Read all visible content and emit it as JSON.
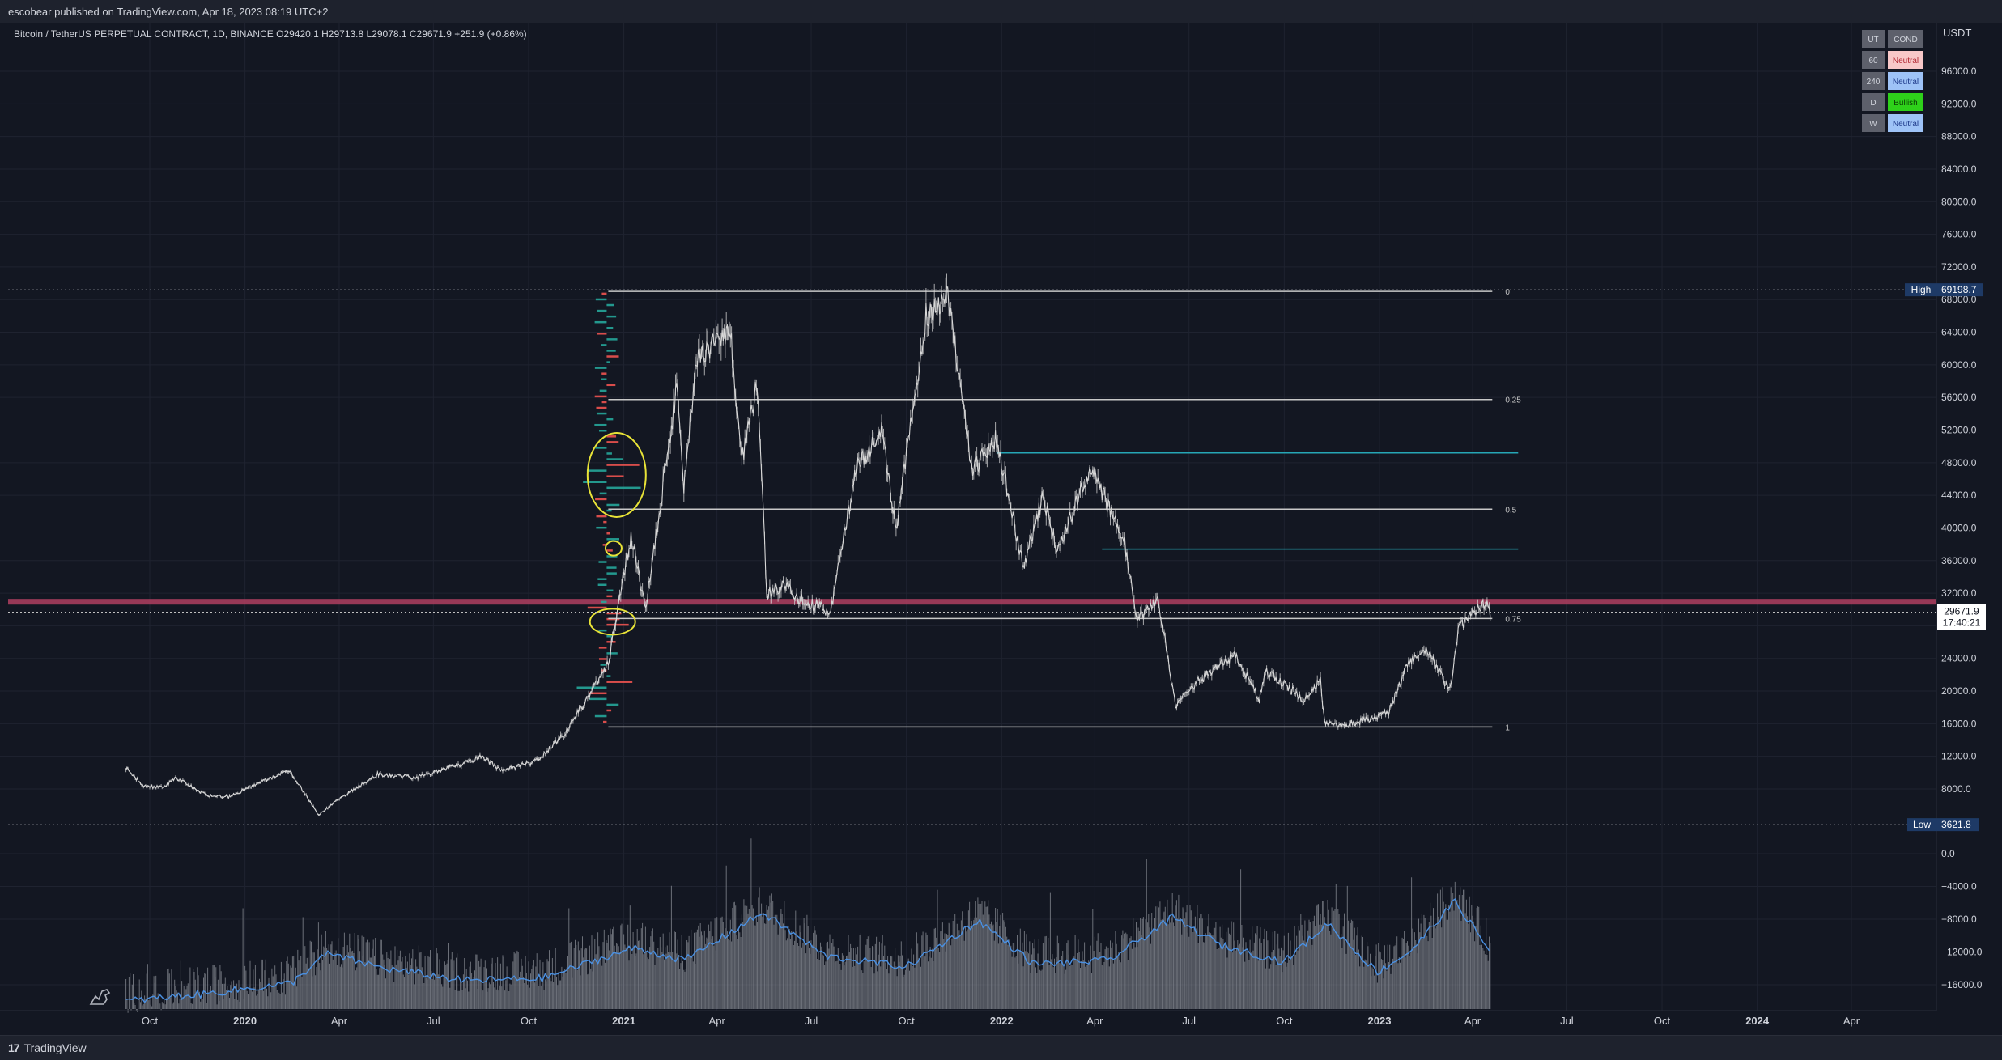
{
  "header": {
    "publisher_line": "escobear published on TradingView.com, Apr 18, 2023 08:19 UTC+2"
  },
  "footer": {
    "brand": "TradingView",
    "logo_glyph": "17"
  },
  "legend": {
    "symbol_line": "Bitcoin / TetherUS PERPETUAL CONTRACT, 1D, BINANCE  O29420.1  H29713.8  L29078.1  C29671.9  +251.9 (+0.86%)"
  },
  "mtf_table": {
    "headers": [
      "UT",
      "COND"
    ],
    "rows": [
      {
        "tf": "60",
        "cond": "Neutral",
        "bg": "#f8c8c8",
        "fg": "#b22833"
      },
      {
        "tf": "240",
        "cond": "Neutral",
        "bg": "#9ec3f7",
        "fg": "#1e3a8a"
      },
      {
        "tf": "D",
        "cond": "Bullish",
        "bg": "#2ed11a",
        "fg": "#0b3d05"
      },
      {
        "tf": "W",
        "cond": "Neutral",
        "bg": "#9ec3f7",
        "fg": "#1e3a8a"
      }
    ]
  },
  "chart_data": {
    "type": "line",
    "symbol": "Bitcoin / TetherUS PERPETUAL CONTRACT",
    "interval": "1D",
    "exchange": "BINANCE",
    "currency": "USDT",
    "price_axis": {
      "unit_label": "USDT",
      "ticks": [
        96000,
        92000,
        88000,
        84000,
        80000,
        76000,
        72000,
        68000,
        64000,
        60000,
        56000,
        52000,
        48000,
        44000,
        40000,
        36000,
        32000,
        28000,
        24000,
        20000,
        16000,
        12000,
        8000
      ],
      "tick_labels": [
        "96000.0",
        "92000.0",
        "88000.0",
        "84000.0",
        "80000.0",
        "76000.0",
        "72000.0",
        "68000.0",
        "64000.0",
        "60000.0",
        "56000.0",
        "52000.0",
        "48000.0",
        "44000.0",
        "40000.0",
        "36000.0",
        "32000.0",
        "28000.0",
        "24000.0",
        "20000.0",
        "16000.0",
        "12000.0",
        "8000.0"
      ],
      "range": [
        3621.8,
        99000
      ]
    },
    "time_axis": {
      "labels": [
        "Oct",
        "2020",
        "Apr",
        "Jul",
        "Oct",
        "2021",
        "Apr",
        "Jul",
        "Oct",
        "2022",
        "Apr",
        "Jul",
        "Oct",
        "2023",
        "Apr",
        "Jul",
        "Oct",
        "2024",
        "Apr"
      ],
      "bold": [
        "2020",
        "2021",
        "2022",
        "2023",
        "2024"
      ],
      "dates": [
        "2019-10",
        "2020-01",
        "2020-04",
        "2020-07",
        "2020-10",
        "2021-01",
        "2021-04",
        "2021-07",
        "2021-10",
        "2022-01",
        "2022-04",
        "2022-07",
        "2022-10",
        "2023-01",
        "2023-04",
        "2023-07",
        "2023-10",
        "2024-01",
        "2024-04"
      ]
    },
    "series": [
      {
        "name": "",
        "dates": [
          "2019-09-08",
          "2019-09-25",
          "2019-10-15",
          "2019-10-26",
          "2019-11-25",
          "2019-12-17",
          "2020-01-15",
          "2020-02-13",
          "2020-03-12",
          "2020-03-30",
          "2020-05-08",
          "2020-06-15",
          "2020-07-27",
          "2020-08-17",
          "2020-09-05",
          "2020-10-10",
          "2020-11-05",
          "2020-11-25",
          "2020-12-17",
          "2021-01-08",
          "2021-01-22",
          "2021-02-21",
          "2021-02-28",
          "2021-03-13",
          "2021-04-14",
          "2021-04-25",
          "2021-05-10",
          "2021-05-19",
          "2021-06-08",
          "2021-06-22",
          "2021-07-20",
          "2021-08-13",
          "2021-09-07",
          "2021-09-21",
          "2021-10-20",
          "2021-11-10",
          "2021-11-26",
          "2021-12-04",
          "2021-12-27",
          "2022-01-22",
          "2022-02-10",
          "2022-02-24",
          "2022-03-28",
          "2022-04-30",
          "2022-05-12",
          "2022-06-01",
          "2022-06-18",
          "2022-07-08",
          "2022-08-14",
          "2022-09-07",
          "2022-09-13",
          "2022-10-20",
          "2022-11-05",
          "2022-11-09",
          "2022-11-21",
          "2022-12-20",
          "2023-01-10",
          "2023-01-30",
          "2023-02-16",
          "2023-03-10",
          "2023-03-19",
          "2023-04-14",
          "2023-04-18"
        ],
        "values": [
          10600,
          8300,
          8200,
          9400,
          7200,
          7000,
          8800,
          10300,
          4800,
          6600,
          9800,
          9400,
          11000,
          12000,
          10200,
          11500,
          14800,
          18800,
          23500,
          39000,
          30000,
          57000,
          45000,
          61000,
          64000,
          48000,
          58000,
          32000,
          33000,
          31000,
          29800,
          47000,
          52000,
          40000,
          66000,
          68700,
          54000,
          47000,
          51000,
          35000,
          44000,
          37000,
          47500,
          38000,
          28500,
          31500,
          18000,
          21000,
          24500,
          19000,
          22500,
          19000,
          21300,
          16000,
          15700,
          16500,
          17400,
          23800,
          25000,
          20000,
          28000,
          30800,
          29671.9
        ]
      }
    ],
    "volume_panel": {
      "note": "volume oscillator / volume histogram with smoothed line",
      "axis_ticks": [
        0,
        -4000,
        -8000,
        -12000,
        -16000
      ],
      "axis_labels": [
        "0.0",
        "−4000.0",
        "−8000.0",
        "−12000.0",
        "−16000.0"
      ],
      "smoothed_line": {
        "dates": [
          "2019-09-08",
          "2019-12-01",
          "2020-02-15",
          "2020-03-20",
          "2020-05-15",
          "2020-08-01",
          "2020-10-15",
          "2021-01-10",
          "2021-03-01",
          "2021-05-15",
          "2021-07-15",
          "2021-10-01",
          "2021-12-10",
          "2022-02-01",
          "2022-04-15",
          "2022-06-15",
          "2022-08-01",
          "2022-10-01",
          "2022-11-12",
          "2022-12-30",
          "2023-02-01",
          "2023-03-15",
          "2023-04-18"
        ],
        "values": [
          -18000,
          -17000,
          -15800,
          -12200,
          -14000,
          -15500,
          -15200,
          -11500,
          -13000,
          -7200,
          -12500,
          -13800,
          -8200,
          -13500,
          -13000,
          -7800,
          -11200,
          -13200,
          -8500,
          -14500,
          -11800,
          -5800,
          -12000
        ]
      }
    },
    "levels": {
      "high": {
        "label": "High",
        "value": 69198.7,
        "value_text": "69198.7"
      },
      "low": {
        "label": "Low",
        "value": 3621.8,
        "value_text": "3621.8"
      },
      "last": {
        "value": 29671.9,
        "value_text": "29671.9",
        "countdown": "17:40:21"
      },
      "fib": [
        {
          "label": "0",
          "value": 69000
        },
        {
          "label": "0.25",
          "value": 55750
        },
        {
          "label": "0.5",
          "value": 42300
        },
        {
          "label": "0.75",
          "value": 28900
        },
        {
          "label": "1",
          "value": 15600
        }
      ],
      "fib_start": "2020-12-17",
      "fib_end": "2023-04-20",
      "teal_lines": [
        {
          "value": 49200,
          "start": "2021-12-27",
          "end": "2023-05-15"
        },
        {
          "value": 37400,
          "start": "2022-04-08",
          "end": "2023-05-15"
        }
      ],
      "red_zone": [
        30600,
        31300
      ]
    },
    "annotations": [
      {
        "kind": "ellipse",
        "color": "#e8e337",
        "center_date": "2020-12-22",
        "center_value": 46500
      },
      {
        "kind": "ellipse",
        "color": "#e8e337",
        "center_date": "2020-12-19",
        "center_value": 37500
      },
      {
        "kind": "ellipse",
        "color": "#e8e337",
        "center_date": "2020-12-18",
        "center_value": 28500
      }
    ],
    "colors": {
      "background": "#131722",
      "price": "#d8d8d8",
      "fib": "#c8c8c8",
      "teal": "#26a6b5",
      "red_zone": "#b04060",
      "volume_bar": "#8a8d95",
      "volume_line": "#4a90e2",
      "profile_up": "#26a69a",
      "profile_down": "#ef5350"
    },
    "grid": true
  }
}
